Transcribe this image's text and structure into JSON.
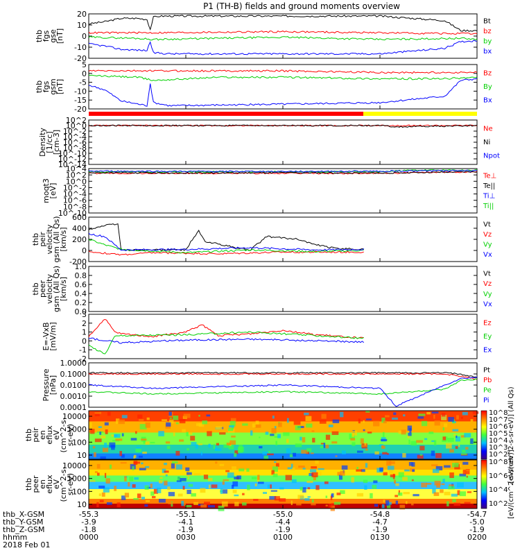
{
  "title": "P1 (TH-B) fields and ground moments overview",
  "colors": {
    "black": "#000000",
    "red": "#ff0000",
    "green": "#00d000",
    "blue": "#0000ff",
    "yellow": "#ffff00"
  },
  "chart_data": [
    {
      "type": "line",
      "id": "fgs_gse",
      "ylabel": [
        "thb",
        "fgs",
        "gse",
        "[nT]"
      ],
      "yticks": [
        "-20",
        "-10",
        "0",
        "10",
        "20"
      ],
      "ylim": [
        -20,
        20
      ],
      "legend": [
        "Bt",
        "bz",
        "by",
        "bx"
      ],
      "series": [
        {
          "name": "Bt",
          "color": "black",
          "x": [
            0,
            5,
            10,
            15,
            18,
            19,
            20,
            22,
            30,
            60,
            90,
            110,
            115,
            118,
            120
          ],
          "y": [
            11,
            13,
            16,
            16,
            15,
            6,
            17,
            18,
            18,
            18,
            18,
            14,
            5,
            5,
            5
          ]
        },
        {
          "name": "bz",
          "color": "red",
          "x": [
            0,
            20,
            60,
            90,
            120
          ],
          "y": [
            3,
            3,
            4,
            3,
            2
          ]
        },
        {
          "name": "by",
          "color": "green",
          "x": [
            0,
            15,
            20,
            40,
            60,
            90,
            115,
            120
          ],
          "y": [
            -1,
            -2,
            -3,
            -2,
            -1,
            -3,
            -2,
            -3
          ]
        },
        {
          "name": "bx",
          "color": "blue",
          "x": [
            0,
            5,
            10,
            18,
            19,
            20,
            25,
            60,
            90,
            110,
            115,
            120
          ],
          "y": [
            -7,
            -9,
            -12,
            -13,
            -5,
            -15,
            -16,
            -16,
            -16,
            -11,
            -5,
            -4
          ]
        }
      ]
    },
    {
      "type": "line",
      "id": "fgs_gsm",
      "ylabel": [
        "thb",
        "fgs",
        "gsm",
        "[nT]"
      ],
      "yticks": [
        "-20",
        "-15",
        "-10",
        "-5",
        "0",
        "5"
      ],
      "ylim": [
        -22,
        6
      ],
      "legend": [
        "Bz",
        "By",
        "Bx"
      ],
      "series": [
        {
          "name": "Bz",
          "color": "red",
          "x": [
            0,
            20,
            60,
            90,
            120
          ],
          "y": [
            2,
            2,
            2,
            1,
            1
          ]
        },
        {
          "name": "By",
          "color": "green",
          "x": [
            0,
            15,
            20,
            40,
            60,
            90,
            110,
            120
          ],
          "y": [
            -1,
            -2,
            -4,
            -2,
            -2,
            -3,
            -3,
            -2
          ]
        },
        {
          "name": "Bx",
          "color": "blue",
          "x": [
            0,
            5,
            10,
            18,
            19,
            20,
            25,
            60,
            90,
            110,
            115,
            120
          ],
          "y": [
            -7,
            -10,
            -17,
            -20,
            -6,
            -18,
            -20,
            -19,
            -18,
            -14,
            -4,
            -3
          ]
        }
      ]
    },
    {
      "type": "line",
      "id": "density",
      "ylabel": [
        "Density",
        "[1/cc]",
        "[cm-3]"
      ],
      "log": true,
      "yticks": [
        "10^2",
        "10^0",
        "10^-2",
        "10^-4",
        "10^-6",
        "10^-8",
        "10^-10",
        "10^-12",
        "10^-14"
      ],
      "ylim": [
        -14,
        2
      ],
      "legend": [
        "Ne",
        "Ni",
        "Npot"
      ],
      "series": [
        {
          "name": "Ne",
          "color": "red",
          "x": [
            0,
            30,
            60,
            90,
            120
          ],
          "y": [
            0,
            0,
            0,
            0,
            0
          ]
        },
        {
          "name": "Ni",
          "color": "black",
          "x": [
            0,
            30,
            60,
            90,
            95,
            120
          ],
          "y": [
            0,
            0,
            0,
            0,
            -0.5,
            0
          ]
        }
      ]
    },
    {
      "type": "line",
      "id": "temp",
      "ylabel": [
        "moqt3",
        "[eV]"
      ],
      "log": true,
      "yticks": [
        "10^4",
        "10^2",
        "10^0",
        "10^-2",
        "10^-4",
        "10^-6",
        "10^-8",
        "10^-10"
      ],
      "ylim": [
        -10,
        4
      ],
      "legend": [
        "Te⊥",
        "Te||",
        "Ti⊥",
        "Ti||"
      ],
      "series": [
        {
          "name": "Ti⊥",
          "color": "green",
          "x": [
            0,
            30,
            60,
            90,
            100,
            120
          ],
          "y": [
            3,
            3,
            3,
            3,
            3.5,
            3.5
          ]
        },
        {
          "name": "Te⊥",
          "color": "red",
          "x": [
            0,
            30,
            60,
            90,
            120
          ],
          "y": [
            2.5,
            2.5,
            2.5,
            2.5,
            3
          ]
        },
        {
          "name": "Te||",
          "color": "black",
          "x": [
            0,
            30,
            60,
            90,
            120
          ],
          "y": [
            2.7,
            2.6,
            2.7,
            2.6,
            3
          ]
        },
        {
          "name": "Ti||",
          "color": "blue",
          "x": [
            0,
            30,
            60,
            90,
            120
          ],
          "y": [
            3.2,
            3.1,
            3.1,
            3.2,
            3.4
          ]
        }
      ]
    },
    {
      "type": "line",
      "id": "peir_vel",
      "ylabel": [
        "thb",
        "peir",
        "velocity",
        "gsm (All Qs)",
        "[km/s]"
      ],
      "yticks": [
        "-200",
        "0",
        "200",
        "400",
        "600"
      ],
      "ylim": [
        -200,
        600
      ],
      "legend": [
        "Vt",
        "Vz",
        "Vy",
        "Vx"
      ],
      "series": [
        {
          "name": "Vt",
          "color": "black",
          "x": [
            0,
            5,
            9,
            10,
            30,
            32,
            34,
            36,
            40,
            45,
            50,
            55,
            65,
            70,
            75,
            80,
            85
          ],
          "y": [
            380,
            450,
            480,
            10,
            10,
            200,
            350,
            150,
            120,
            50,
            10,
            250,
            200,
            100,
            50,
            30,
            20
          ]
        },
        {
          "name": "Vz",
          "color": "red",
          "x": [
            0,
            10,
            20,
            40,
            60,
            85
          ],
          "y": [
            -20,
            -80,
            -40,
            -60,
            -30,
            -30
          ]
        },
        {
          "name": "Vy",
          "color": "green",
          "x": [
            0,
            5,
            10,
            30,
            50,
            70,
            85
          ],
          "y": [
            200,
            100,
            20,
            -40,
            10,
            -20,
            0
          ]
        },
        {
          "name": "Vx",
          "color": "blue",
          "x": [
            0,
            5,
            10,
            30,
            50,
            70,
            85
          ],
          "y": [
            300,
            250,
            10,
            20,
            50,
            10,
            20
          ]
        }
      ]
    },
    {
      "type": "line",
      "id": "peer_vel",
      "ylabel": [
        "thb",
        "peer",
        "velocity",
        "gsm (All Qs)",
        "[km/s]"
      ],
      "yticks": [
        "0.0",
        "0.2",
        "0.4",
        "0.6",
        "0.8",
        "1.0"
      ],
      "ylim": [
        0,
        1
      ],
      "legend": [
        "Vt",
        "Vz",
        "Vy",
        "Vx"
      ],
      "series": []
    },
    {
      "type": "line",
      "id": "exb",
      "ylabel": [
        "E=-VxB",
        "[mV/m]"
      ],
      "yticks": [
        "-2",
        "-1",
        "0",
        "1",
        "2",
        "3"
      ],
      "ylim": [
        -2,
        3
      ],
      "legend": [
        "Ez",
        "Ey",
        "Ex"
      ],
      "series": [
        {
          "name": "Ez",
          "color": "red",
          "x": [
            0,
            5,
            8,
            10,
            20,
            30,
            35,
            40,
            50,
            60,
            70,
            85
          ],
          "y": [
            0.5,
            2.5,
            1,
            0.8,
            0.5,
            1,
            1.8,
            0.6,
            0.8,
            1.2,
            0.7,
            0.3
          ]
        },
        {
          "name": "Ey",
          "color": "green",
          "x": [
            0,
            5,
            8,
            10,
            30,
            50,
            70,
            85
          ],
          "y": [
            -0.5,
            -1.5,
            0.5,
            0.6,
            0.7,
            1,
            0.6,
            0.3
          ]
        },
        {
          "name": "Ex",
          "color": "blue",
          "x": [
            0,
            10,
            30,
            50,
            70,
            85
          ],
          "y": [
            0.3,
            -0.2,
            0.1,
            0.2,
            0.0,
            -0.1
          ]
        }
      ]
    },
    {
      "type": "line",
      "id": "pressure",
      "ylabel": [
        "Pressure",
        "[nPa]"
      ],
      "log": true,
      "yticks": [
        "1.0000",
        "0.1000",
        "0.0100",
        "0.0010",
        "0.0001"
      ],
      "ylim": [
        -4,
        0
      ],
      "legend": [
        "Pt",
        "Pb",
        "Pe",
        "Pi"
      ],
      "series": [
        {
          "name": "Pt",
          "color": "black",
          "x": [
            0,
            30,
            60,
            90,
            110,
            115,
            120
          ],
          "y": [
            -0.9,
            -0.9,
            -0.9,
            -0.9,
            -0.9,
            -1.0,
            -1.3
          ]
        },
        {
          "name": "Pb",
          "color": "red",
          "x": [
            0,
            30,
            60,
            90,
            110,
            115,
            120
          ],
          "y": [
            -1.0,
            -1.0,
            -1.0,
            -1.0,
            -1.0,
            -1.2,
            -1.5
          ]
        },
        {
          "name": "Pe",
          "color": "green",
          "x": [
            0,
            20,
            60,
            90,
            110,
            115,
            120
          ],
          "y": [
            -2.6,
            -2.8,
            -2.6,
            -2.8,
            -2.4,
            -1.6,
            -1.5
          ]
        },
        {
          "name": "Pi",
          "color": "blue",
          "x": [
            0,
            20,
            60,
            90,
            95,
            110,
            115,
            120
          ],
          "y": [
            -2.0,
            -2.3,
            -2.0,
            -2.3,
            -3.9,
            -2.0,
            -1.4,
            -1.3
          ]
        }
      ]
    },
    {
      "type": "heatmap",
      "id": "peir_flux",
      "ylabel": [
        "thb",
        "peir",
        "en",
        "eflux",
        "eV",
        "(cm^2-s-",
        "sr-eV)"
      ],
      "yticks": [
        "10000",
        "1000",
        "100",
        "10"
      ],
      "colorbar": {
        "ticks": [
          "10^8",
          "10^7",
          "10^6",
          "10^5",
          "10^4",
          "10^3",
          "10^2"
        ],
        "label": "[eV/(cm^2-s-sr-eV)] (All Qs)"
      }
    },
    {
      "type": "heatmap",
      "id": "peer_flux",
      "ylabel": [
        "thb",
        "peer",
        "en",
        "eflux",
        "eV",
        "(cm^2-s-",
        "sr-eV)"
      ],
      "yticks": [
        "10000",
        "1000",
        "100",
        "10"
      ],
      "colorbar": {
        "ticks": [
          "10^8",
          "10^6",
          "10^4",
          "10^2"
        ],
        "label": "[eV/(cm^2-s-sr-eV)]"
      }
    }
  ],
  "ephemeris": {
    "rows": [
      {
        "label": "thb_X-GSM",
        "values": [
          "-55.3",
          "-55.1",
          "-55.0",
          "-54.8",
          "-54.7"
        ]
      },
      {
        "label": "thb_Y-GSM",
        "values": [
          "-3.9",
          "-4.1",
          "-4.4",
          "-4.7",
          "-5.0"
        ]
      },
      {
        "label": "thb_Z-GSM",
        "values": [
          "-1.8",
          "-1.9",
          "-1.9",
          "-1.9",
          "-1.9"
        ]
      },
      {
        "label": "hhmm",
        "values": [
          "0000",
          "0030",
          "0100",
          "0130",
          "0200"
        ]
      }
    ],
    "date": "2018 Feb 01"
  }
}
